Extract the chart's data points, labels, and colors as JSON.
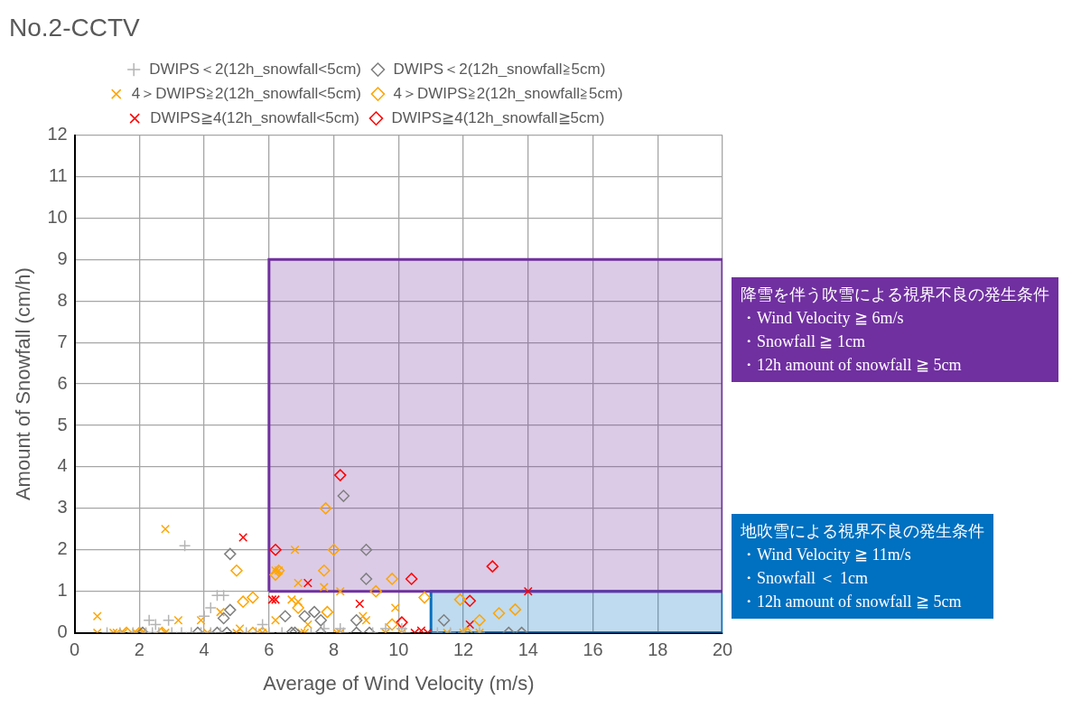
{
  "chart_data": {
    "type": "scatter",
    "title": "No.2-CCTV",
    "xlabel": "Average of Wind Velocity (m/s)",
    "ylabel": "Amount of Snowfall (cm/h)",
    "xlim": [
      0,
      20
    ],
    "ylim": [
      0,
      12
    ],
    "xticks": [
      0,
      2,
      4,
      6,
      8,
      10,
      12,
      14,
      16,
      18,
      20
    ],
    "yticks": [
      0,
      1,
      2,
      3,
      4,
      5,
      6,
      7,
      8,
      9,
      10,
      11,
      12
    ],
    "grid": true,
    "legend": "top",
    "series": [
      {
        "type": "area",
        "color": "#7030a0",
        "x": [
          6,
          6,
          20,
          20,
          6
        ],
        "values": [
          1,
          9,
          9,
          1,
          1
        ]
      },
      {
        "type": "area",
        "color": "#0070c0",
        "x": [
          11,
          11,
          20,
          20,
          11
        ],
        "values": [
          0,
          1,
          1,
          0,
          0
        ]
      },
      {
        "name": "DWIPS＜2(12h_snowfall<5cm)",
        "color": "#b4b4b4",
        "marker": "plus",
        "x": [
          3.4,
          4.4,
          4.6,
          4.2,
          2.3,
          2.5,
          2.9,
          4.0,
          5.8,
          1.0,
          1.4,
          1.8,
          2.2,
          2.4,
          2.6,
          3.0,
          3.3,
          3.6,
          3.9,
          4.2,
          4.5,
          5.3,
          5.6,
          6.0,
          6.4,
          7.3,
          7.7,
          8.2,
          8.3,
          9.2,
          9.6,
          10.1,
          10.2,
          11.2,
          11.6,
          12.0,
          12.5
        ],
        "values": [
          2.1,
          0.9,
          0.9,
          0.6,
          0.3,
          0.2,
          0.3,
          0.4,
          0.2,
          0,
          0,
          0,
          0,
          0,
          0,
          0,
          0,
          0,
          0,
          0,
          0,
          0,
          0,
          0,
          0,
          0,
          0.1,
          0.1,
          0,
          0,
          0.1,
          0.1,
          0,
          0,
          0,
          0,
          0
        ]
      },
      {
        "name": "DWIPS＜2(12h_snowfall≧5cm)",
        "color": "#808080",
        "marker": "diamond",
        "x": [
          4.8,
          4.8,
          4.6,
          8.3,
          9.0,
          9.0,
          6.5,
          7.1,
          7.4,
          7.6,
          8.7,
          11.4,
          13.4,
          13.8,
          2.1,
          3.8,
          4.4,
          4.7,
          6.7,
          6.8,
          7.6,
          8.7,
          9.1
        ],
        "values": [
          1.9,
          0.55,
          0.35,
          3.3,
          2.0,
          1.3,
          0.4,
          0.4,
          0.5,
          0.3,
          0.3,
          0.3,
          0,
          0,
          0,
          0,
          0,
          0,
          0,
          0,
          0,
          0,
          0
        ]
      },
      {
        "name": "4＞DWIPS≧2(12h_snowfall<5cm)",
        "color": "#ffa500",
        "marker": "cross",
        "x": [
          2.8,
          6.2,
          4.5,
          0.7,
          3.2,
          3.9,
          5.1,
          6.2,
          6.8,
          6.3,
          6.9,
          7.7,
          8.2,
          6.7,
          6.9,
          7.2,
          8.9,
          9.0,
          9.9,
          0.7,
          1.2,
          1.3,
          1.5,
          1.9,
          2.1,
          2.8,
          4.1,
          5.0,
          5.8,
          7.0,
          7.1,
          8.1,
          8.2,
          9.6,
          10.1,
          11.5,
          12.0,
          12.5
        ],
        "values": [
          2.5,
          1.5,
          0.5,
          0.4,
          0.3,
          0.3,
          0.1,
          0.3,
          2.0,
          1.5,
          1.2,
          1.1,
          1.0,
          0.8,
          0.75,
          0.2,
          0.4,
          0.3,
          0.6,
          0,
          0,
          0,
          0,
          0,
          0,
          0,
          0,
          0,
          0,
          0,
          0,
          0,
          0,
          0,
          0,
          0,
          0,
          0
        ]
      },
      {
        "name": "4＞DWIPS≧2(12h_snowfall≧5cm)",
        "color": "#ffa500",
        "marker": "diamond",
        "x": [
          5.0,
          6.3,
          5.2,
          5.5,
          7.75,
          8.0,
          6.2,
          7.7,
          9.8,
          9.3,
          6.9,
          7.8,
          9.8,
          10.8,
          11.9,
          12.5,
          13.1,
          13.6,
          1.6,
          2.0,
          2.7,
          5.5,
          5.8,
          12.1
        ],
        "values": [
          1.5,
          1.5,
          0.75,
          0.85,
          3.0,
          2.0,
          1.4,
          1.5,
          1.3,
          1.0,
          0.6,
          0.5,
          0.2,
          0.85,
          0.8,
          0.3,
          0.47,
          0.56,
          0,
          0,
          0,
          0,
          0,
          0
        ]
      },
      {
        "name": "DWIPS≧4(12h_snowfall<5cm)",
        "color": "#ff0000",
        "marker": "cross",
        "x": [
          5.2,
          6.1,
          7.2,
          6.2,
          8.8,
          10.5,
          10.9,
          10.7,
          14.0,
          12.2
        ],
        "values": [
          2.3,
          0.8,
          1.2,
          0.8,
          0.7,
          0,
          0,
          0.05,
          1.0,
          0.2
        ]
      },
      {
        "name": "DWIPS≧4(12h_snowfall≧5cm)",
        "color": "#ff0000",
        "marker": "diamond",
        "x": [
          6.2,
          8.2,
          10.4,
          10.1,
          12.9,
          12.2
        ],
        "values": [
          2.0,
          3.8,
          1.3,
          0.25,
          1.6,
          0.77
        ]
      }
    ],
    "annotations": [
      "降雪を伴う吹雪による視界不良の発生条件・Wind Velocity ≧ 6m/s\n・Snowfall ≧ 1cm\n・12h amount of snowfall ≧ 5cm",
      "地吹雪による視界不良の発生条件・Wind Velocity ≧ 11m/s\n・Snowfall ＜ 1cm\n・12h amount of snowfall ≧ 5cm"
    ]
  }
}
